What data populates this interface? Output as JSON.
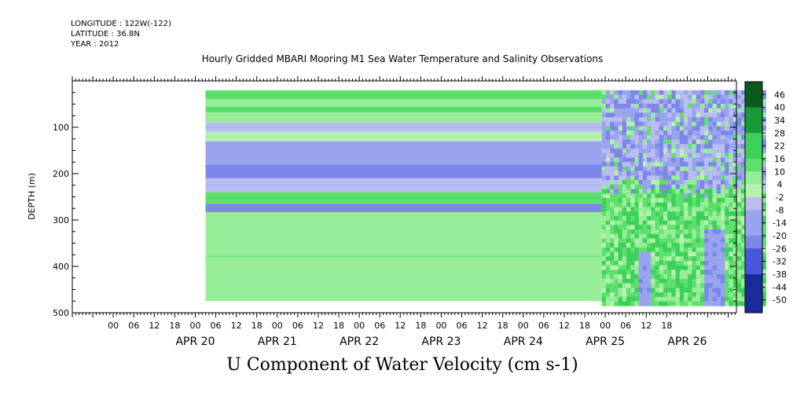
{
  "header": {
    "longitude": "LONGITUDE : 122W(-122)",
    "latitude": "LATITUDE : 36.8N",
    "year": "YEAR : 2012"
  },
  "chart_data": {
    "type": "heatmap",
    "title": "Hourly Gridded MBARI Mooring M1 Sea Water Temperature and Salinity Observations",
    "variable_label": "U Component of Water Velocity (cm s-1)",
    "ylabel": "DEPTH (m)",
    "ylim": [
      500,
      0
    ],
    "y_inverted": true,
    "yticks": [
      100,
      200,
      300,
      400,
      500
    ],
    "x_hour_ticks": [
      "00",
      "06",
      "12",
      "18",
      "00",
      "06",
      "12",
      "18",
      "00",
      "06",
      "12",
      "18",
      "00",
      "06",
      "12",
      "18",
      "00",
      "06",
      "12",
      "18",
      "00",
      "06",
      "12",
      "18",
      "00",
      "06",
      "12",
      "18"
    ],
    "x_day_labels": [
      "APR 20",
      "APR 21",
      "APR 22",
      "APR 23",
      "APR 24",
      "APR 25",
      "APR 26"
    ],
    "colorbar": {
      "levels": [
        "46",
        "40",
        "34",
        "28",
        "22",
        "16",
        "10",
        "4",
        "-2",
        "-8",
        "-14",
        "-20",
        "-26",
        "-32",
        "-38",
        "-44",
        "-50"
      ],
      "min": -50,
      "max": 50
    },
    "regions": [
      {
        "x_range": [
          "APR 20 03",
          "APR 24 23"
        ],
        "pattern": "horizontal depth bands, constant in time",
        "bands": [
          {
            "depth": [
              20,
              40
            ],
            "value": 12
          },
          {
            "depth": [
              40,
              55
            ],
            "value": 4
          },
          {
            "depth": [
              55,
              68
            ],
            "value": 12
          },
          {
            "depth": [
              68,
              90
            ],
            "value": 4
          },
          {
            "depth": [
              90,
              110
            ],
            "value": -8
          },
          {
            "depth": [
              110,
              130
            ],
            "value": 3
          },
          {
            "depth": [
              130,
              180
            ],
            "value": -10
          },
          {
            "depth": [
              180,
              210
            ],
            "value": -16
          },
          {
            "depth": [
              210,
              240
            ],
            "value": -8
          },
          {
            "depth": [
              240,
              265
            ],
            "value": 12
          },
          {
            "depth": [
              265,
              283
            ],
            "value": -16
          },
          {
            "depth": [
              283,
              475
            ],
            "value": 6
          }
        ]
      },
      {
        "x_range": [
          "APR 25 00",
          "APR 26 23"
        ],
        "pattern": "variable in time and depth",
        "upper": {
          "depth": [
            20,
            225
          ],
          "value_approx": -10
        },
        "lower": {
          "depth": [
            225,
            485
          ],
          "value_approx": 12
        }
      }
    ]
  }
}
